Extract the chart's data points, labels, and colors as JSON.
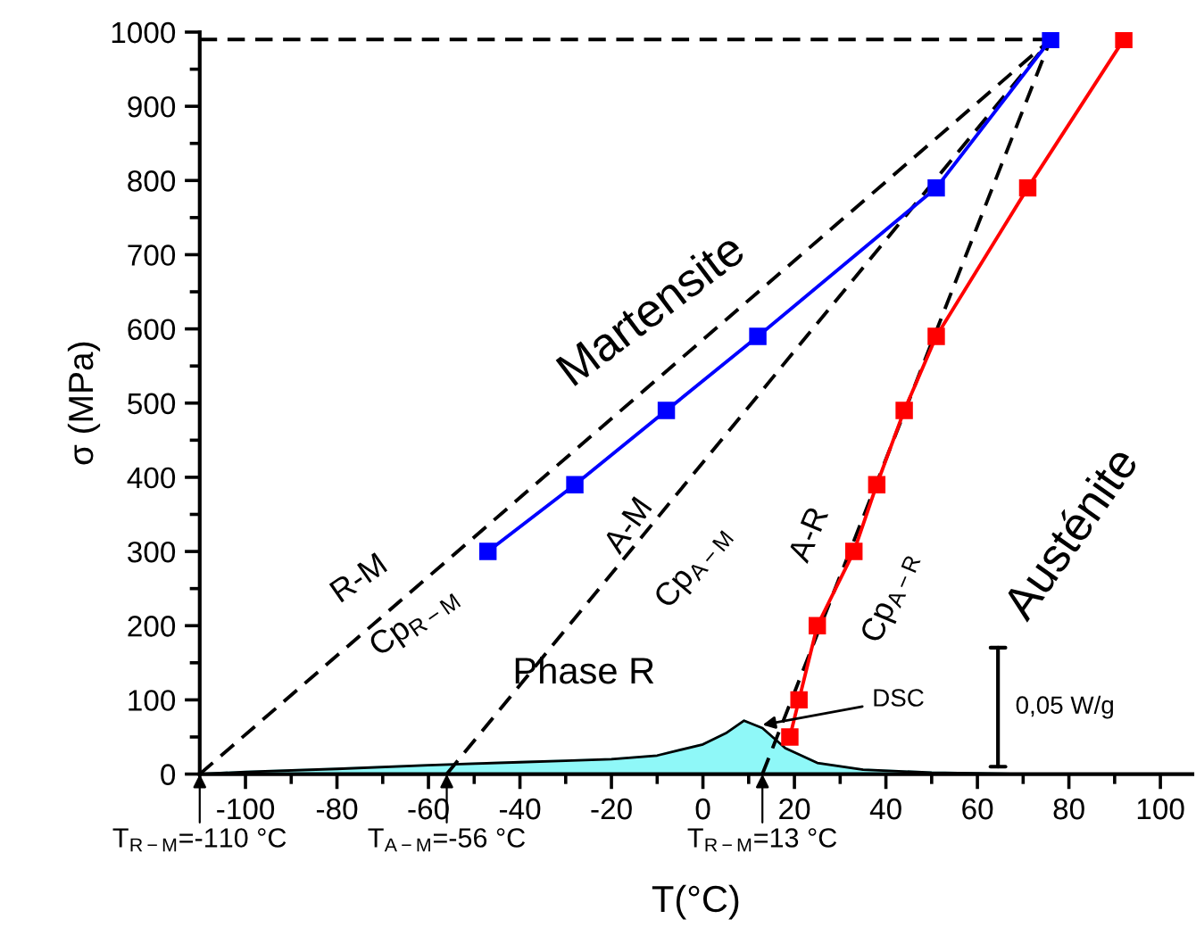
{
  "chart_data": {
    "type": "line",
    "xlabel": "T(°C)",
    "ylabel": "σ (MPa)",
    "xlim": [
      -110,
      107
    ],
    "ylim": [
      0,
      1000
    ],
    "xticks": [
      -100,
      -80,
      -60,
      -40,
      -20,
      0,
      20,
      40,
      60,
      80,
      100
    ],
    "yticks": [
      0,
      100,
      200,
      300,
      400,
      500,
      600,
      700,
      800,
      900,
      1000
    ],
    "grid": false,
    "series": [
      {
        "type": "area",
        "color": "#8ff8f8",
        "x": [
          -110,
          -100,
          -80,
          -60,
          -40,
          -30,
          -20,
          -10,
          0,
          5,
          9,
          13,
          18,
          25,
          35,
          50,
          70
        ],
        "values": [
          0,
          3,
          7,
          12,
          16,
          18,
          20,
          25,
          40,
          55,
          72,
          62,
          35,
          15,
          6,
          2,
          0
        ]
      },
      {
        "color": "#000000",
        "line_style": "dashed",
        "marker": "none",
        "x": [
          -110,
          76
        ],
        "values": [
          990,
          990
        ]
      },
      {
        "color": "#000000",
        "line_style": "dashed",
        "marker": "none",
        "x": [
          -110,
          76
        ],
        "values": [
          0,
          990
        ]
      },
      {
        "color": "#000000",
        "line_style": "dashed",
        "marker": "none",
        "x": [
          -56,
          76
        ],
        "values": [
          0,
          990
        ]
      },
      {
        "color": "#000000",
        "line_style": "dashed",
        "marker": "none",
        "x": [
          13,
          76
        ],
        "values": [
          0,
          990
        ]
      },
      {
        "color": "#0000ff",
        "line_style": "solid",
        "marker": "square",
        "x": [
          -47,
          -28,
          -8,
          12,
          51,
          76
        ],
        "values": [
          300,
          390,
          490,
          590,
          790,
          990
        ]
      },
      {
        "color": "#ff0000",
        "line_style": "solid",
        "marker": "square",
        "x": [
          19,
          21,
          25,
          33,
          38,
          44,
          51,
          71,
          92
        ],
        "values": [
          50,
          100,
          200,
          300,
          390,
          490,
          590,
          790,
          990
        ]
      }
    ],
    "annotations": [
      "Martensite",
      "Austénite",
      "Phase R",
      "R-M",
      "Cp$_{R−M}$",
      "A-M",
      "Cp$_{A−M}$",
      "A-R",
      "Cp$_{A−R}$",
      {
        "text": "0,05 W/g",
        "x": 64.5,
        "y": 10
      },
      {
        "text": "DSC",
        "x": 12,
        "y": 65
      },
      {
        "text": "T$_{R−M}$=-110 °C",
        "x": -110,
        "y": 0
      },
      {
        "text": "T$_{A−M}$=-56 °C",
        "x": -56,
        "y": 0
      },
      {
        "text": "T$_{R−M}$=13 °C",
        "x": 13,
        "y": 0
      }
    ]
  }
}
